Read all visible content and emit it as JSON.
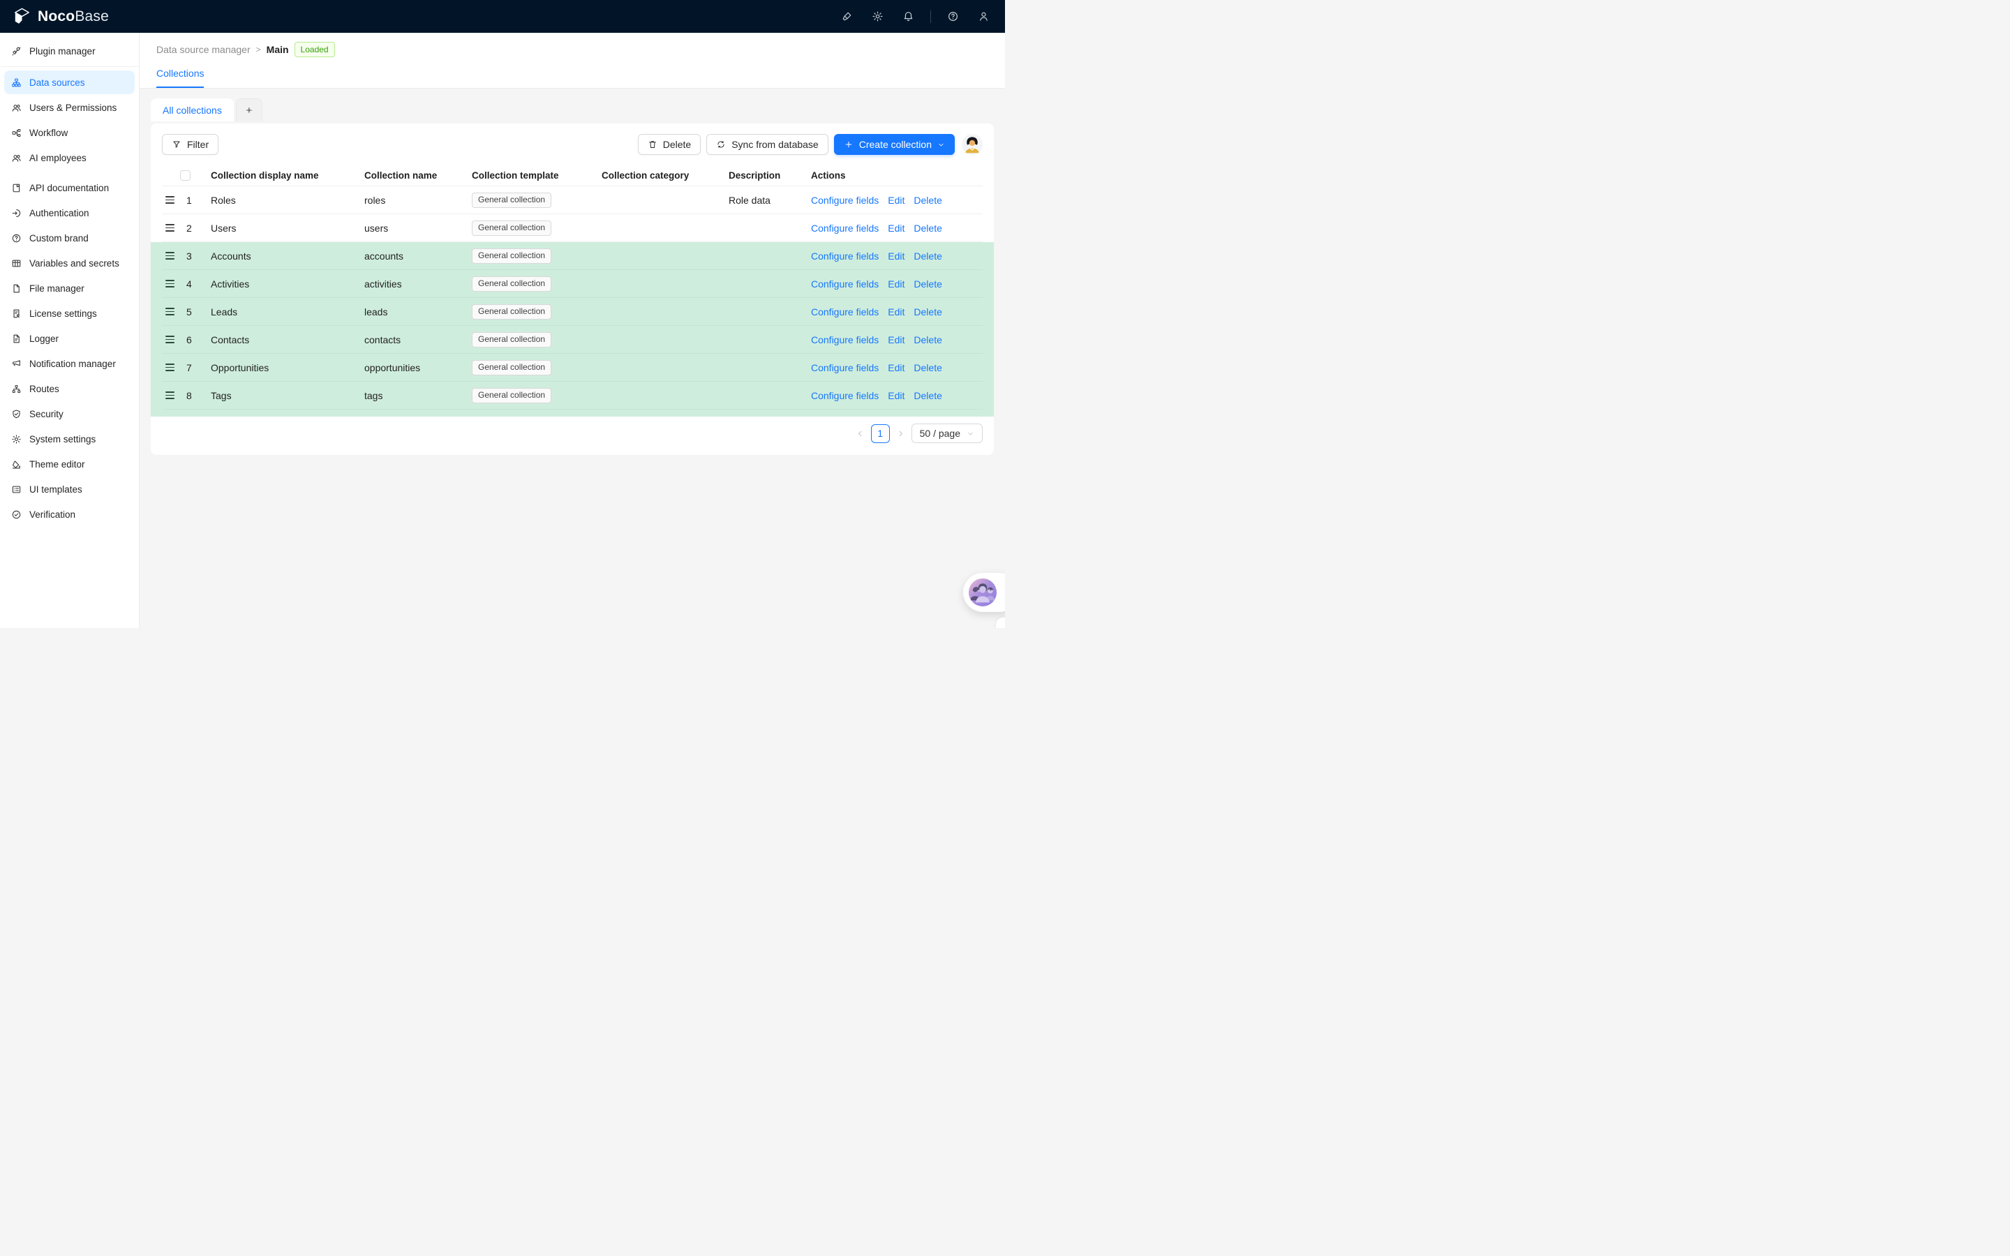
{
  "app": {
    "title_bold": "Noco",
    "title_light": "Base"
  },
  "topbar": {
    "icons": [
      {
        "name": "marker"
      },
      {
        "name": "settings-gear"
      },
      {
        "name": "bell",
        "divider_after": true
      },
      {
        "name": "help-circle"
      },
      {
        "name": "user"
      }
    ]
  },
  "sidebar": {
    "items": [
      {
        "label": "Plugin manager",
        "icon": "api",
        "divider_after": true
      },
      {
        "label": "Data sources",
        "icon": "cluster",
        "active": true
      },
      {
        "label": "Users & Permissions",
        "icon": "team"
      },
      {
        "label": "Workflow",
        "icon": "partition"
      },
      {
        "label": "AI employees",
        "icon": "team"
      },
      {
        "label": "API documentation",
        "icon": "book",
        "group_gap": true
      },
      {
        "label": "Authentication",
        "icon": "login"
      },
      {
        "label": "Custom brand",
        "icon": "question-circle"
      },
      {
        "label": "Variables and secrets",
        "icon": "table"
      },
      {
        "label": "File manager",
        "icon": "file"
      },
      {
        "label": "License settings",
        "icon": "file-certificate"
      },
      {
        "label": "Logger",
        "icon": "file-text"
      },
      {
        "label": "Notification manager",
        "icon": "megaphone"
      },
      {
        "label": "Routes",
        "icon": "apartment"
      },
      {
        "label": "Security",
        "icon": "shield-check"
      },
      {
        "label": "System settings",
        "icon": "gear"
      },
      {
        "label": "Theme editor",
        "icon": "paint-bucket"
      },
      {
        "label": "UI templates",
        "icon": "layout-list"
      },
      {
        "label": "Verification",
        "icon": "check-circle"
      }
    ]
  },
  "breadcrumb": {
    "parent": "Data source manager",
    "separator": ">",
    "current": "Main",
    "status": "Loaded"
  },
  "page_tabs": {
    "active": "Collections"
  },
  "collection_tabs": {
    "active": "All collections",
    "add": "+"
  },
  "toolbar": {
    "filter_label": "Filter",
    "delete_label": "Delete",
    "sync_label": "Sync from database",
    "create_label": "Create collection"
  },
  "table": {
    "columns": [
      "Collection display name",
      "Collection name",
      "Collection template",
      "Collection category",
      "Description",
      "Actions"
    ],
    "action_labels": [
      "Configure fields",
      "Edit",
      "Delete"
    ],
    "rows": [
      {
        "num": "1",
        "display_name": "Roles",
        "name": "roles",
        "template": "General collection",
        "category": "",
        "description": "Role data",
        "highlighted": false
      },
      {
        "num": "2",
        "display_name": "Users",
        "name": "users",
        "template": "General collection",
        "category": "",
        "description": "",
        "highlighted": false
      },
      {
        "num": "3",
        "display_name": "Accounts",
        "name": "accounts",
        "template": "General collection",
        "category": "",
        "description": "",
        "highlighted": true
      },
      {
        "num": "4",
        "display_name": "Activities",
        "name": "activities",
        "template": "General collection",
        "category": "",
        "description": "",
        "highlighted": true
      },
      {
        "num": "5",
        "display_name": "Leads",
        "name": "leads",
        "template": "General collection",
        "category": "",
        "description": "",
        "highlighted": true
      },
      {
        "num": "6",
        "display_name": "Contacts",
        "name": "contacts",
        "template": "General collection",
        "category": "",
        "description": "",
        "highlighted": true
      },
      {
        "num": "7",
        "display_name": "Opportunities",
        "name": "opportunities",
        "template": "General collection",
        "category": "",
        "description": "",
        "highlighted": true
      },
      {
        "num": "8",
        "display_name": "Tags",
        "name": "tags",
        "template": "General collection",
        "category": "",
        "description": "",
        "highlighted": true
      }
    ]
  },
  "pagination": {
    "page": "1",
    "page_size": "50 / page"
  },
  "colors": {
    "accent": "#1677ff",
    "topbar_bg": "#021528",
    "row_highlight": "#cfeddd",
    "sidebar_active_bg": "#e6f4ff",
    "badge_text": "#389e0d",
    "badge_bg": "#f6ffed",
    "badge_border": "#b7eb8f",
    "page_bg": "#f5f5f5"
  }
}
